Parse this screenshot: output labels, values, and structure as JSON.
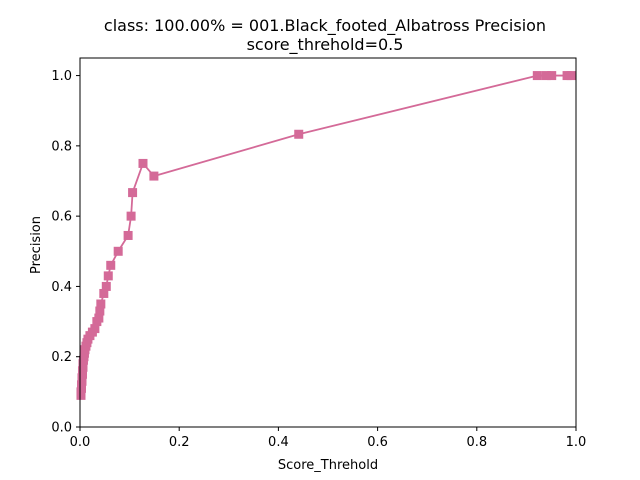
{
  "chart_data": {
    "type": "line",
    "title_line1": "class: 100.00% = 001.Black_footed_Albatross Precision",
    "title_line2": "score_threhold=0.5",
    "xlabel": "Score_Threhold",
    "ylabel": "Precision",
    "xlim": [
      0,
      1
    ],
    "ylim": [
      0,
      1.05
    ],
    "xticks": [
      "0.0",
      "0.2",
      "0.4",
      "0.6",
      "0.8",
      "1.0"
    ],
    "yticks": [
      "0.0",
      "0.2",
      "0.4",
      "0.6",
      "0.8",
      "1.0"
    ],
    "grid": false,
    "color": "#d46a98",
    "marker": "square",
    "series": [
      {
        "x": [
          0.002,
          0.002,
          0.003,
          0.003,
          0.004,
          0.004,
          0.005,
          0.005,
          0.006,
          0.006,
          0.007,
          0.008,
          0.009,
          0.01,
          0.012,
          0.014,
          0.016,
          0.02,
          0.025,
          0.03,
          0.034,
          0.038,
          0.04,
          0.042,
          0.048,
          0.053,
          0.057,
          0.062,
          0.077,
          0.097,
          0.103,
          0.106,
          0.127,
          0.149,
          0.441,
          0.922,
          0.94,
          0.951,
          0.982,
          0.99
        ],
        "y": [
          0.09,
          0.1,
          0.11,
          0.12,
          0.13,
          0.14,
          0.15,
          0.16,
          0.17,
          0.18,
          0.19,
          0.2,
          0.21,
          0.22,
          0.23,
          0.24,
          0.25,
          0.26,
          0.27,
          0.28,
          0.3,
          0.31,
          0.33,
          0.35,
          0.38,
          0.4,
          0.43,
          0.46,
          0.5,
          0.545,
          0.6,
          0.667,
          0.75,
          0.714,
          0.833,
          1.0,
          1.0,
          1.0,
          1.0,
          1.0
        ]
      }
    ]
  }
}
